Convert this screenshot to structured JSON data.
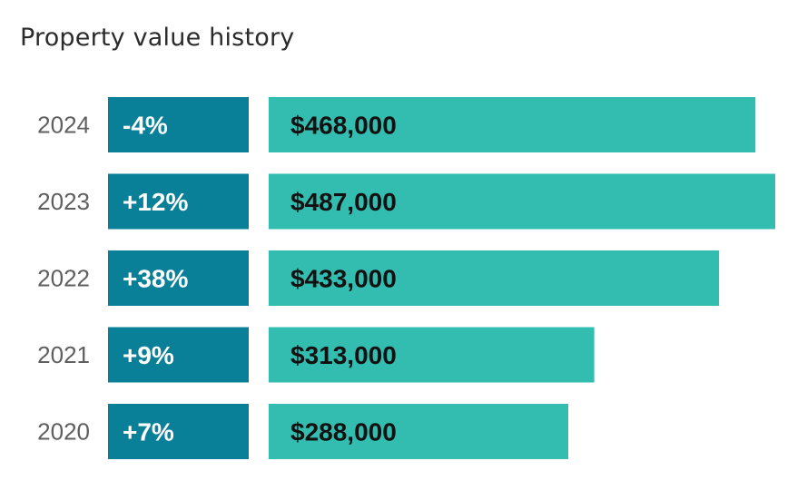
{
  "title": "Property value history",
  "colors": {
    "change_box": "#0a7f98",
    "value_bar": "#33bdb0"
  },
  "chart_data": {
    "type": "bar",
    "orientation": "horizontal",
    "title": "Property value history",
    "categories": [
      "2024",
      "2023",
      "2022",
      "2021",
      "2020"
    ],
    "series": [
      {
        "values": [
          468000,
          487000,
          433000,
          313000,
          288000
        ]
      }
    ],
    "value_labels": [
      "$468,000",
      "$487,000",
      "$433,000",
      "$313,000",
      "$288,000"
    ],
    "change_labels": [
      "-4%",
      "+12%",
      "+38%",
      "+9%",
      "+7%"
    ],
    "grid": false,
    "legend": "none"
  }
}
